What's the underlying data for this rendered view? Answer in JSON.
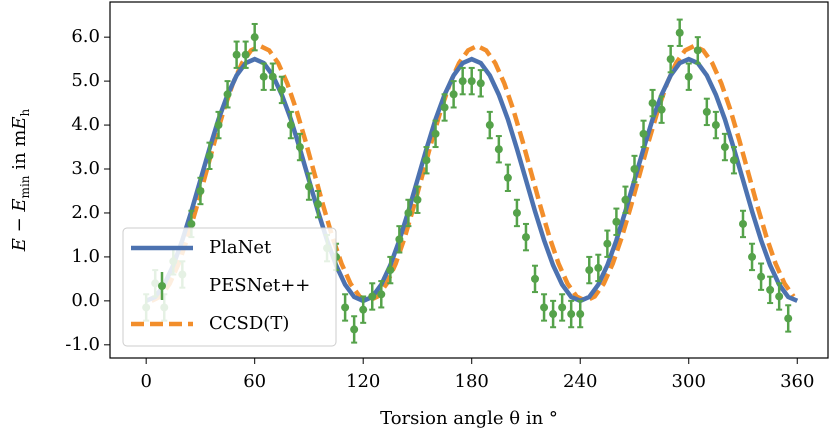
{
  "chart_data": {
    "type": "line",
    "x_label": "Torsion angle θ in °",
    "y_label": [
      "E − E",
      "min",
      " in m",
      "E",
      "h"
    ],
    "xlim": [
      -20,
      377
    ],
    "ylim": [
      -1.3,
      6.8
    ],
    "xticks": [
      0,
      60,
      120,
      180,
      240,
      300,
      360
    ],
    "yticks": [
      {
        "value": -1,
        "label": "-1.0"
      },
      {
        "value": 0,
        "label": "0.0"
      },
      {
        "value": 1,
        "label": "1.0"
      },
      {
        "value": 2,
        "label": "2.0"
      },
      {
        "value": 3,
        "label": "3.0"
      },
      {
        "value": 4,
        "label": "4.0"
      },
      {
        "value": 5,
        "label": "5.0"
      },
      {
        "value": 6,
        "label": "6.0"
      }
    ],
    "legend": "lower left",
    "series": [
      {
        "name": "PlaNet",
        "color": "#4c72b0",
        "style": "solid",
        "x": [
          0,
          5,
          10,
          15,
          20,
          25,
          30,
          35,
          40,
          45,
          50,
          55,
          60,
          65,
          70,
          75,
          80,
          85,
          90,
          95,
          100,
          105,
          110,
          115,
          120,
          125,
          130,
          135,
          140,
          145,
          150,
          155,
          160,
          165,
          170,
          175,
          180,
          185,
          190,
          195,
          200,
          205,
          210,
          215,
          220,
          225,
          230,
          235,
          240,
          245,
          250,
          255,
          260,
          265,
          270,
          275,
          280,
          285,
          290,
          295,
          300,
          305,
          310,
          315,
          320,
          325,
          330,
          335,
          340,
          345,
          350,
          355,
          360
        ],
        "values": [
          0,
          0.09,
          0.37,
          0.81,
          1.38,
          2.04,
          2.75,
          3.46,
          4.13,
          4.69,
          5.13,
          5.41,
          5.5,
          5.41,
          5.13,
          4.69,
          4.13,
          3.46,
          2.75,
          2.04,
          1.38,
          0.81,
          0.37,
          0.09,
          0,
          0.09,
          0.37,
          0.81,
          1.38,
          2.04,
          2.75,
          3.46,
          4.13,
          4.69,
          5.13,
          5.41,
          5.5,
          5.41,
          5.13,
          4.69,
          4.13,
          3.46,
          2.75,
          2.04,
          1.38,
          0.81,
          0.37,
          0.09,
          0,
          0.09,
          0.37,
          0.81,
          1.38,
          2.04,
          2.75,
          3.46,
          4.13,
          4.69,
          5.13,
          5.41,
          5.5,
          5.41,
          5.13,
          4.69,
          4.13,
          3.46,
          2.75,
          2.04,
          1.38,
          0.81,
          0.37,
          0.09,
          0
        ]
      },
      {
        "name": "PESNet++",
        "color": "#55a24a",
        "style": "errorbar",
        "x": [
          0,
          5,
          10,
          15,
          20,
          25,
          30,
          35,
          40,
          45,
          50,
          55,
          60,
          65,
          70,
          75,
          80,
          85,
          90,
          95,
          100,
          105,
          110,
          115,
          120,
          125,
          130,
          135,
          140,
          145,
          150,
          155,
          160,
          165,
          170,
          175,
          180,
          185,
          190,
          195,
          200,
          205,
          210,
          215,
          220,
          225,
          230,
          235,
          240,
          245,
          250,
          255,
          260,
          265,
          270,
          275,
          280,
          285,
          290,
          295,
          300,
          305,
          310,
          315,
          320,
          325,
          330,
          335,
          340,
          345,
          350,
          355
        ],
        "values": [
          -0.15,
          0.4,
          -0.15,
          0.9,
          0.6,
          1.75,
          2.5,
          3.3,
          4.0,
          4.7,
          5.6,
          5.6,
          6.0,
          5.1,
          5.1,
          4.8,
          4.0,
          3.5,
          2.6,
          2.2,
          1.2,
          1.0,
          -0.15,
          -0.65,
          -0.2,
          0.1,
          0.15,
          0.7,
          1.4,
          2.0,
          2.3,
          3.2,
          3.8,
          4.4,
          4.7,
          5.0,
          5.0,
          4.95,
          4.0,
          3.45,
          2.8,
          2.0,
          1.45,
          0.5,
          -0.15,
          -0.3,
          -0.15,
          -0.3,
          -0.3,
          0.7,
          0.75,
          1.3,
          1.8,
          2.3,
          3.0,
          3.8,
          4.5,
          4.35,
          5.5,
          6.1,
          5.1,
          5.7,
          4.3,
          4.0,
          3.5,
          3.2,
          1.75,
          1.0,
          0.55,
          0.25,
          0.1,
          -0.4
        ],
        "errors": [
          0.3,
          0.3,
          0.3,
          0.3,
          0.3,
          0.3,
          0.3,
          0.3,
          0.3,
          0.3,
          0.3,
          0.3,
          0.3,
          0.3,
          0.3,
          0.3,
          0.3,
          0.3,
          0.3,
          0.3,
          0.3,
          0.3,
          0.3,
          0.3,
          0.3,
          0.3,
          0.3,
          0.3,
          0.3,
          0.3,
          0.3,
          0.3,
          0.3,
          0.3,
          0.3,
          0.3,
          0.3,
          0.3,
          0.3,
          0.3,
          0.3,
          0.3,
          0.3,
          0.3,
          0.3,
          0.3,
          0.3,
          0.3,
          0.3,
          0.3,
          0.3,
          0.3,
          0.3,
          0.3,
          0.3,
          0.3,
          0.3,
          0.3,
          0.3,
          0.3,
          0.3,
          0.3,
          0.3,
          0.3,
          0.3,
          0.3,
          0.3,
          0.3,
          0.3,
          0.3,
          0.3,
          0.3
        ]
      },
      {
        "name": "CCSD(T)",
        "color": "#f28e2b",
        "style": "dashed",
        "x": [
          3,
          8,
          13,
          18,
          23,
          28,
          33,
          38,
          43,
          48,
          53,
          58,
          63,
          68,
          73,
          78,
          83,
          88,
          93,
          98,
          103,
          108,
          113,
          118,
          123,
          128,
          133,
          138,
          143,
          148,
          153,
          158,
          163,
          168,
          173,
          178,
          183,
          188,
          193,
          198,
          203,
          208,
          213,
          218,
          223,
          228,
          233,
          238,
          243,
          248,
          253,
          258,
          263,
          268,
          273,
          278,
          283,
          288,
          293,
          298,
          303,
          308,
          313,
          318,
          323,
          328,
          333,
          338,
          343,
          348,
          353,
          358
        ],
        "values": [
          0,
          0.1,
          0.39,
          0.85,
          1.45,
          2.15,
          2.9,
          3.65,
          4.35,
          4.95,
          5.41,
          5.7,
          5.8,
          5.7,
          5.41,
          4.95,
          4.35,
          3.65,
          2.9,
          2.15,
          1.45,
          0.85,
          0.39,
          0.1,
          0,
          0.1,
          0.39,
          0.85,
          1.45,
          2.15,
          2.9,
          3.65,
          4.35,
          4.95,
          5.41,
          5.7,
          5.8,
          5.7,
          5.41,
          4.95,
          4.35,
          3.65,
          2.9,
          2.15,
          1.45,
          0.85,
          0.39,
          0.1,
          0,
          0.1,
          0.39,
          0.85,
          1.45,
          2.15,
          2.9,
          3.65,
          4.35,
          4.95,
          5.41,
          5.7,
          5.8,
          5.7,
          5.41,
          4.95,
          4.35,
          3.65,
          2.9,
          2.15,
          1.45,
          0.85,
          0.39,
          0.1
        ]
      }
    ]
  }
}
